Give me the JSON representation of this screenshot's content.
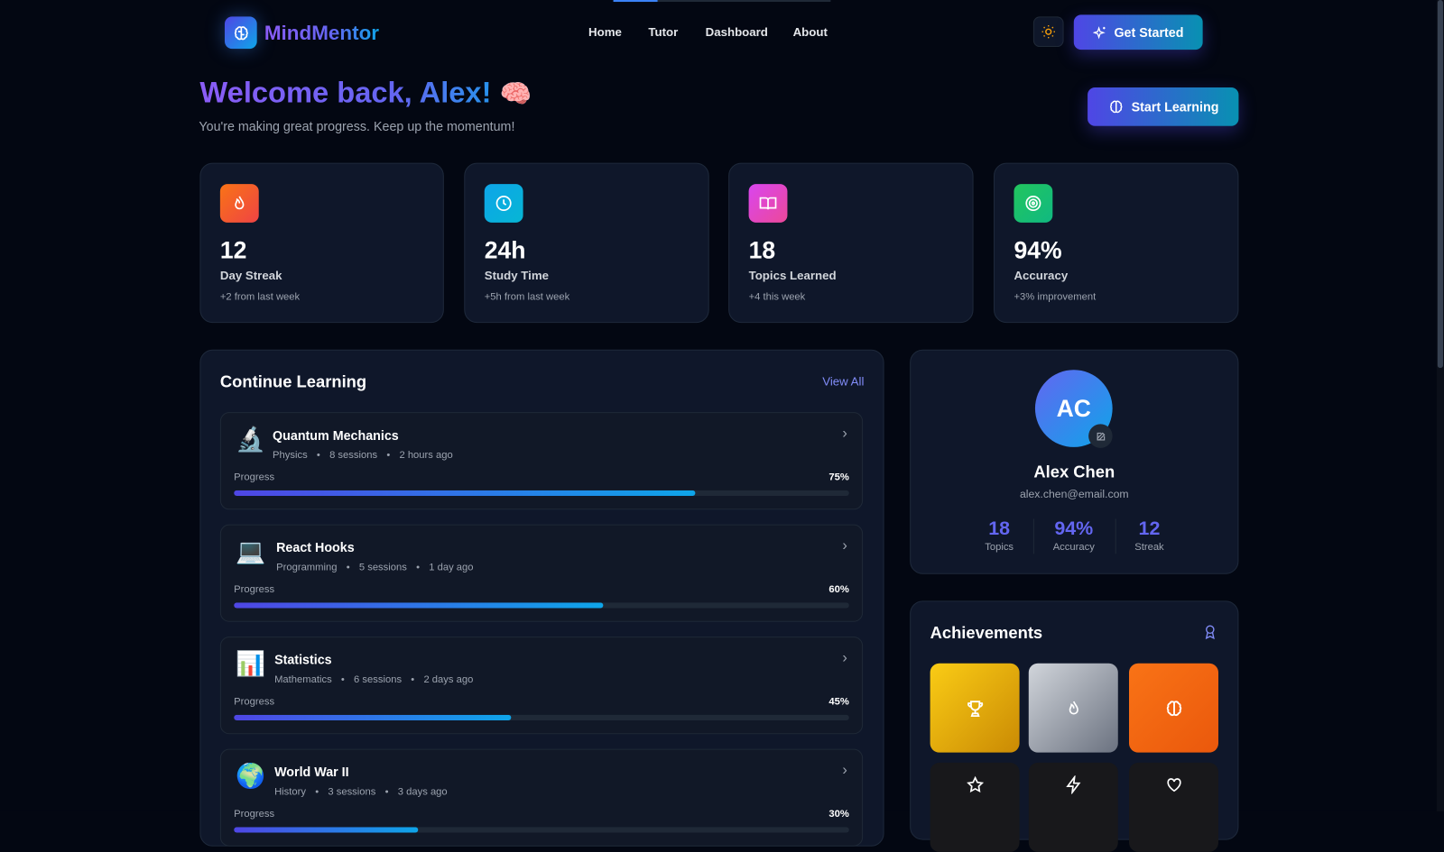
{
  "header": {
    "brand": "MindMentor",
    "nav": [
      "Home",
      "Tutor",
      "Dashboard",
      "About"
    ],
    "cta": "Get Started",
    "theme_icon": "sun-icon"
  },
  "welcome": {
    "title": "Welcome back, Alex!",
    "emoji": "🧠",
    "subtitle": "You're making great progress. Keep up the momentum!",
    "button": "Start Learning"
  },
  "stats": [
    {
      "value": "12",
      "label": "Day Streak",
      "change": "+2 from last week",
      "icon": "flame-icon",
      "color": "#f97316"
    },
    {
      "value": "24h",
      "label": "Study Time",
      "change": "+5h from last week",
      "icon": "clock-icon",
      "color": "#0ea5e9"
    },
    {
      "value": "18",
      "label": "Topics Learned",
      "change": "+4 this week",
      "icon": "book-icon",
      "color": "#d946ef"
    },
    {
      "value": "94%",
      "label": "Accuracy",
      "change": "+3% improvement",
      "icon": "target-icon",
      "color": "#22c55e"
    }
  ],
  "continue": {
    "title": "Continue Learning",
    "view_all": "View All",
    "progress_label": "Progress",
    "courses": [
      {
        "emoji": "🔬",
        "title": "Quantum Mechanics",
        "subject": "Physics",
        "sessions": "8 sessions",
        "time": "2 hours ago",
        "progress": 75,
        "progress_text": "75%"
      },
      {
        "emoji": "💻",
        "title": "React Hooks",
        "subject": "Programming",
        "sessions": "5 sessions",
        "time": "1 day ago",
        "progress": 60,
        "progress_text": "60%"
      },
      {
        "emoji": "📊",
        "title": "Statistics",
        "subject": "Mathematics",
        "sessions": "6 sessions",
        "time": "2 days ago",
        "progress": 45,
        "progress_text": "45%"
      },
      {
        "emoji": "🌍",
        "title": "World War II",
        "subject": "History",
        "sessions": "3 sessions",
        "time": "3 days ago",
        "progress": 30,
        "progress_text": "30%"
      }
    ]
  },
  "profile": {
    "initials": "AC",
    "name": "Alex Chen",
    "email": "alex.chen@email.com",
    "stats": [
      {
        "value": "18",
        "label": "Topics"
      },
      {
        "value": "94%",
        "label": "Accuracy"
      },
      {
        "value": "12",
        "label": "Streak"
      }
    ]
  },
  "achievements": {
    "title": "Achievements",
    "tiles": [
      {
        "icon": "trophy-icon",
        "unlocked": true
      },
      {
        "icon": "flame-icon",
        "unlocked": true
      },
      {
        "icon": "brain-icon",
        "unlocked": true
      },
      {
        "icon": "star-icon",
        "unlocked": false
      },
      {
        "icon": "lightning-icon",
        "unlocked": false
      },
      {
        "icon": "heart-icon",
        "unlocked": false
      }
    ]
  }
}
